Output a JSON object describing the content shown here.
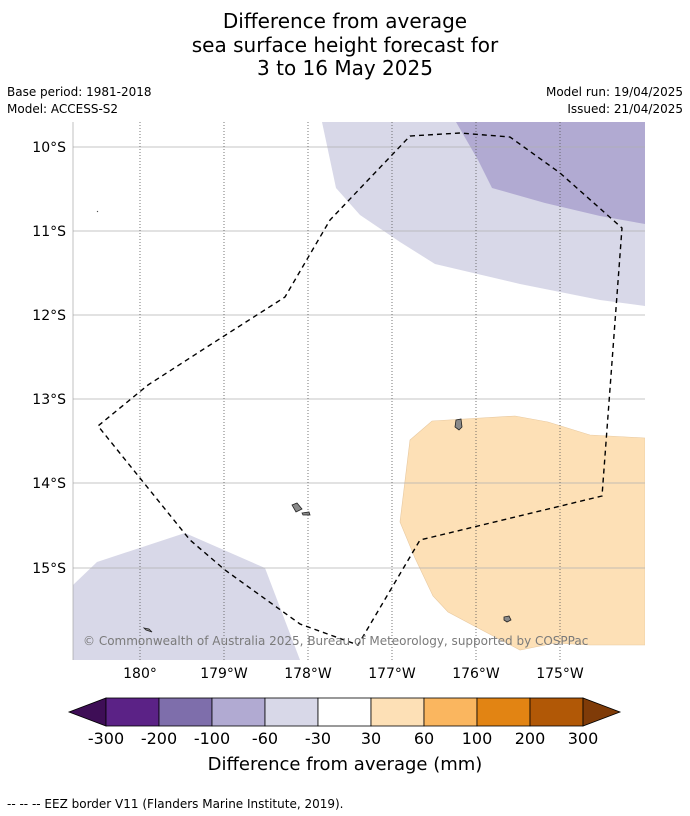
{
  "title_lines": [
    "Difference from average",
    "sea surface height forecast for",
    "3 to 16 May 2025"
  ],
  "meta": {
    "base_period": "Base period: 1981-2018",
    "model": "Model: ACCESS-S2",
    "model_run": "Model run: 19/04/2025",
    "issued": "Issued: 21/04/2025"
  },
  "map": {
    "lat_labels": [
      "10°S",
      "11°S",
      "12°S",
      "13°S",
      "14°S",
      "15°S"
    ],
    "lon_labels": [
      "180°",
      "179°W",
      "178°W",
      "177°W",
      "176°W",
      "175°W"
    ],
    "copyright": "© Commonwealth of Australia 2025, Bureau of Meteorology, supported by COSPPac",
    "colors": {
      "light_purple": "#d8d8e8",
      "mid_purple": "#b1aad2",
      "light_orange": "#fde0b6",
      "land": "#8a8a8a",
      "grid": "#b0b0b0"
    }
  },
  "colorbar": {
    "title": "Difference from average (mm)",
    "ticks": [
      "-300",
      "-200",
      "-100",
      "-60",
      "-30",
      "30",
      "60",
      "100",
      "200",
      "300"
    ],
    "colors": [
      "#3e0e56",
      "#5b2286",
      "#7e6eab",
      "#b1aad2",
      "#d8d8e8",
      "#ffffff",
      "#fde0b6",
      "#fab65f",
      "#e28413",
      "#b15806",
      "#7f3b08"
    ]
  },
  "footnote": "--  --  -- EEZ border V11 (Flanders Marine Institute, 2019)."
}
